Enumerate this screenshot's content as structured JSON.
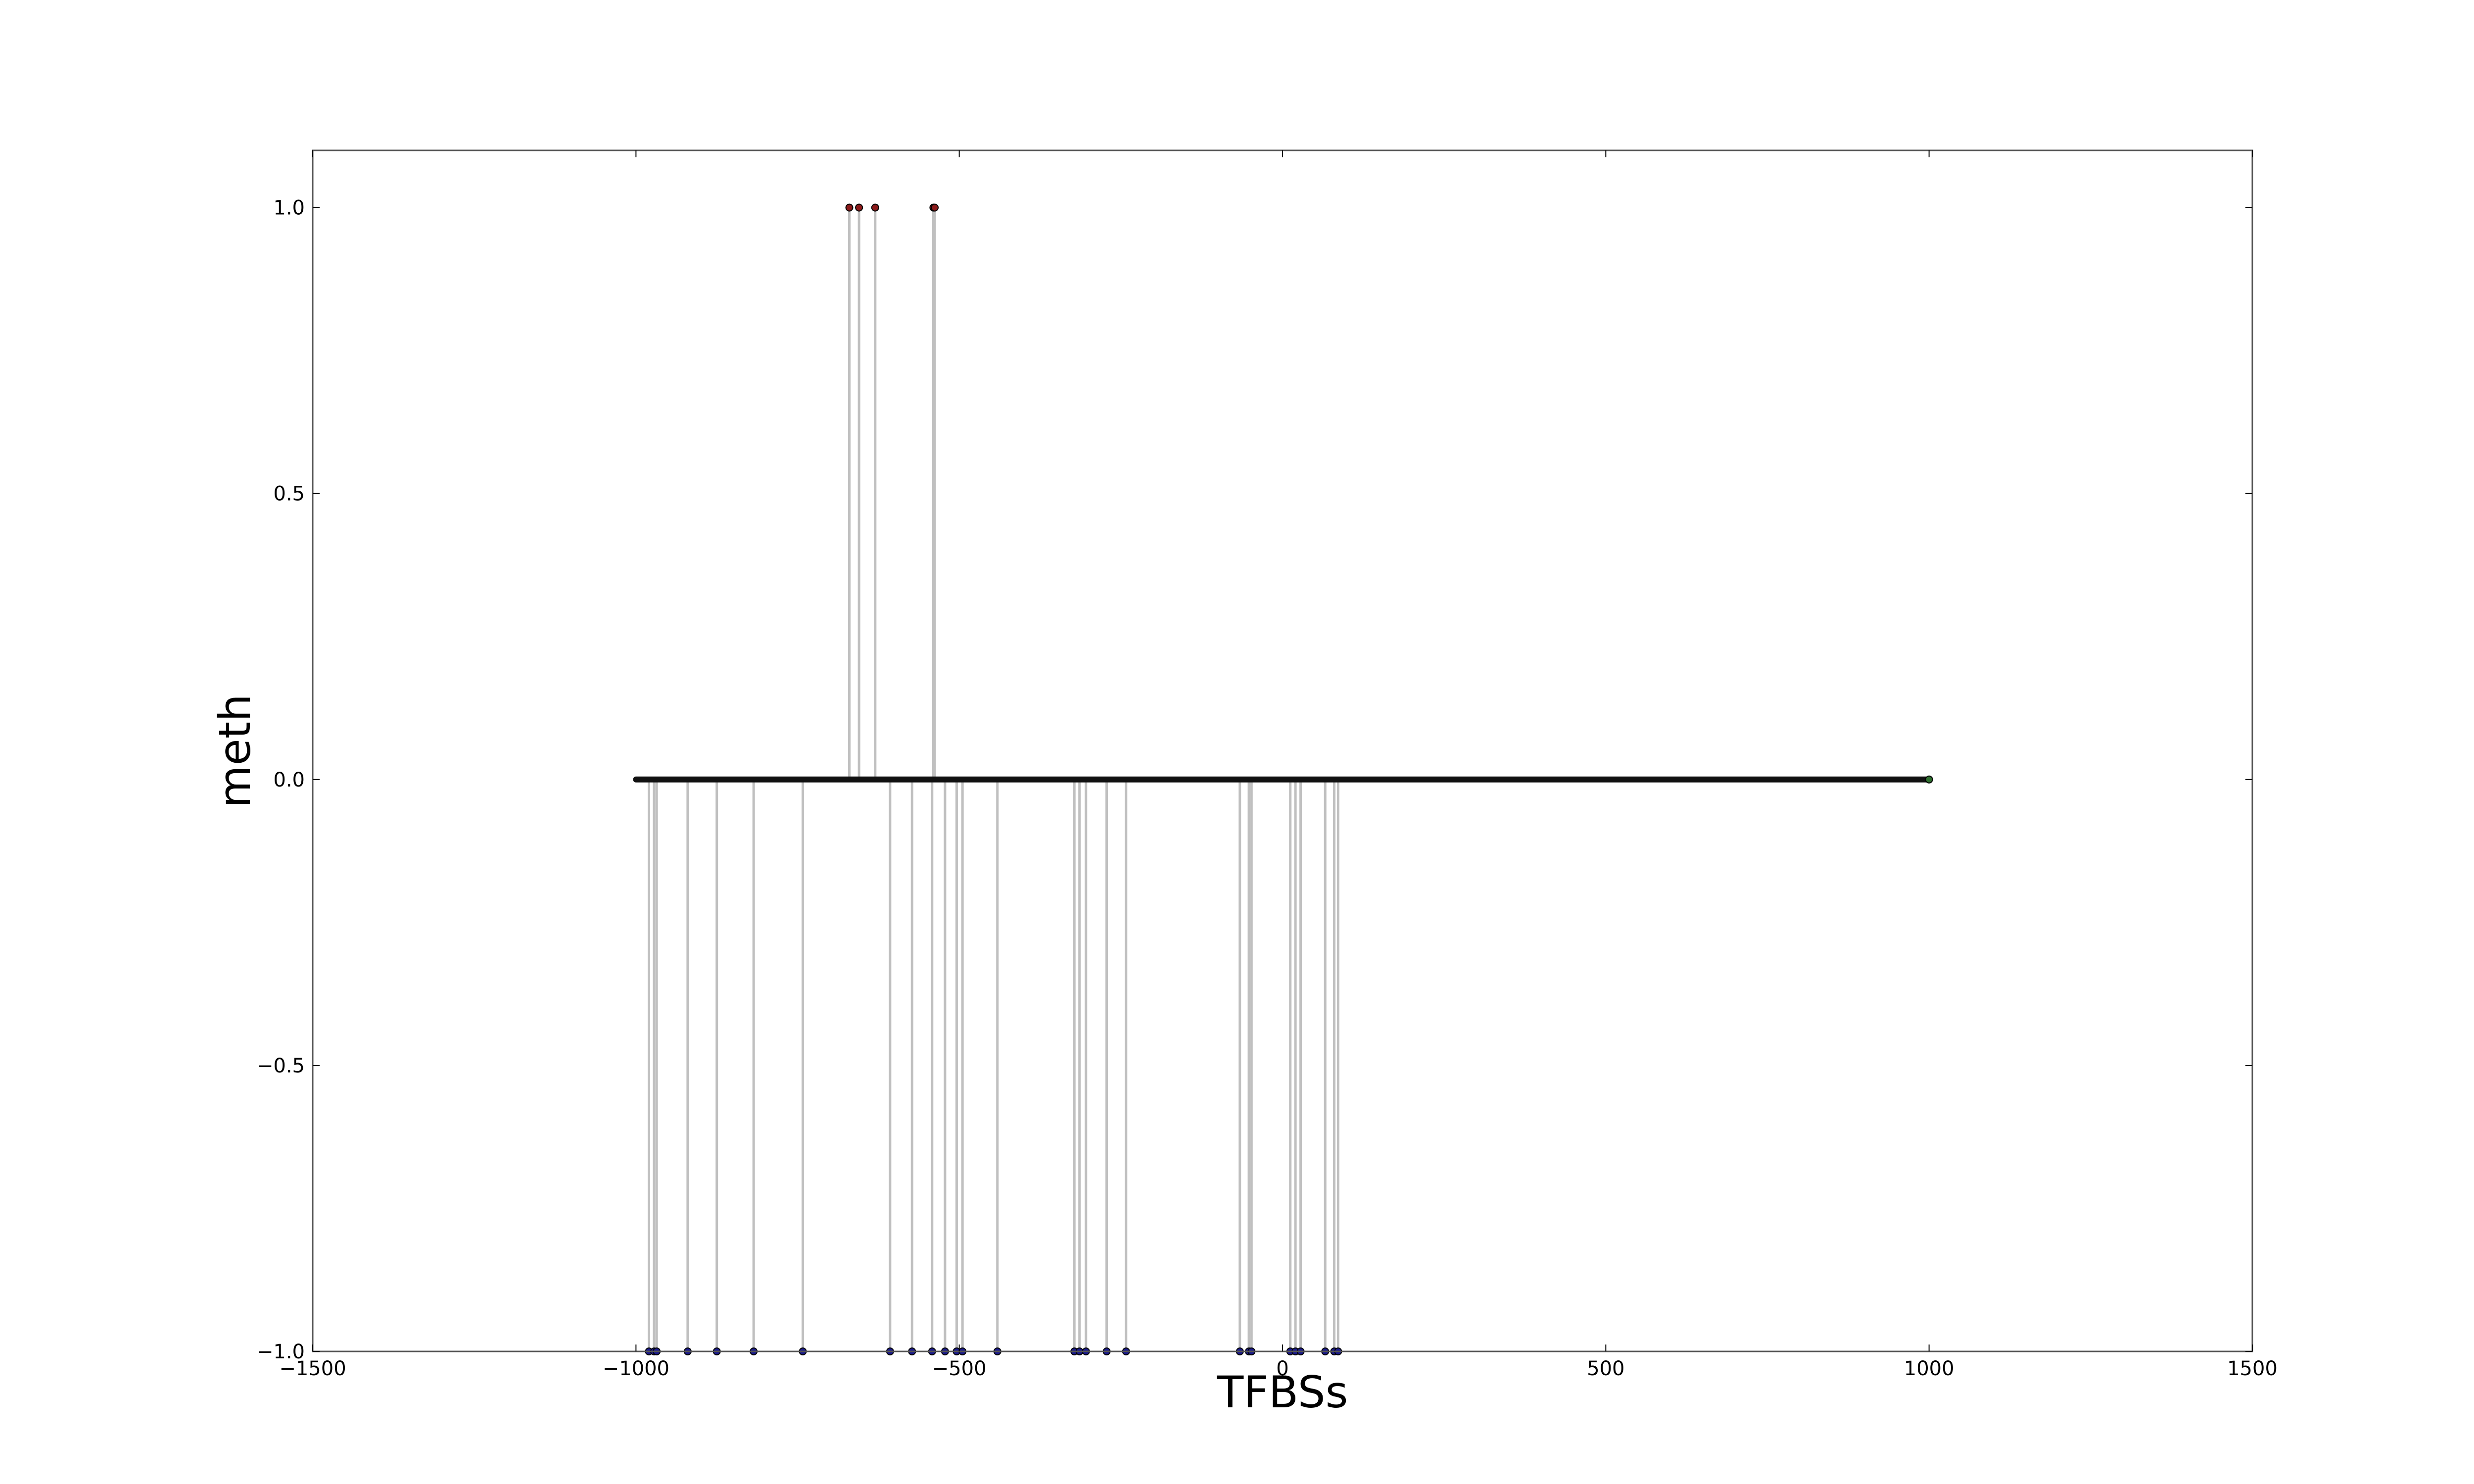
{
  "chart_data": {
    "type": "scatter",
    "style": "stem",
    "title": "",
    "xlabel": "TFBSs",
    "ylabel": "meth",
    "xlim": [
      -1500,
      1500
    ],
    "ylim": [
      -1,
      1.1
    ],
    "x_ticks": [
      -1500,
      -1000,
      -500,
      0,
      500,
      1000,
      1500
    ],
    "y_ticks": [
      -1.0,
      -0.5,
      0.0,
      0.5,
      1.0
    ],
    "x_tick_labels": [
      "−1500",
      "−1000",
      "−500",
      "0",
      "500",
      "1000",
      "1500"
    ],
    "y_tick_labels": [
      "−1.0",
      "−0.5",
      "0.0",
      "0.5",
      "1.0"
    ],
    "grid": false,
    "stem_color": "#c0c0c0",
    "series": [
      {
        "color": "#8b1a1a",
        "x": [
          -670,
          -655,
          -630,
          -540,
          -538
        ],
        "y": [
          1,
          1,
          1,
          1,
          1
        ]
      },
      {
        "color": "#1a1a8b",
        "x": [
          -980,
          -972,
          -968,
          -920,
          -875,
          -818,
          -742,
          -607,
          -573,
          -542,
          -522,
          -504,
          -495,
          -441,
          -322,
          -314,
          -304,
          -272,
          -242,
          -66,
          -52,
          -48,
          12,
          20,
          28,
          66,
          80,
          86
        ],
        "y": [
          -1,
          -1,
          -1,
          -1,
          -1,
          -1,
          -1,
          -1,
          -1,
          -1,
          -1,
          -1,
          -1,
          -1,
          -1,
          -1,
          -1,
          -1,
          -1,
          -1,
          -1,
          -1,
          -1,
          -1,
          -1,
          -1,
          -1,
          -1
        ]
      },
      {
        "color": "#2e6e2e",
        "x_range": [
          -1000,
          1000
        ],
        "y": 0
      }
    ]
  }
}
